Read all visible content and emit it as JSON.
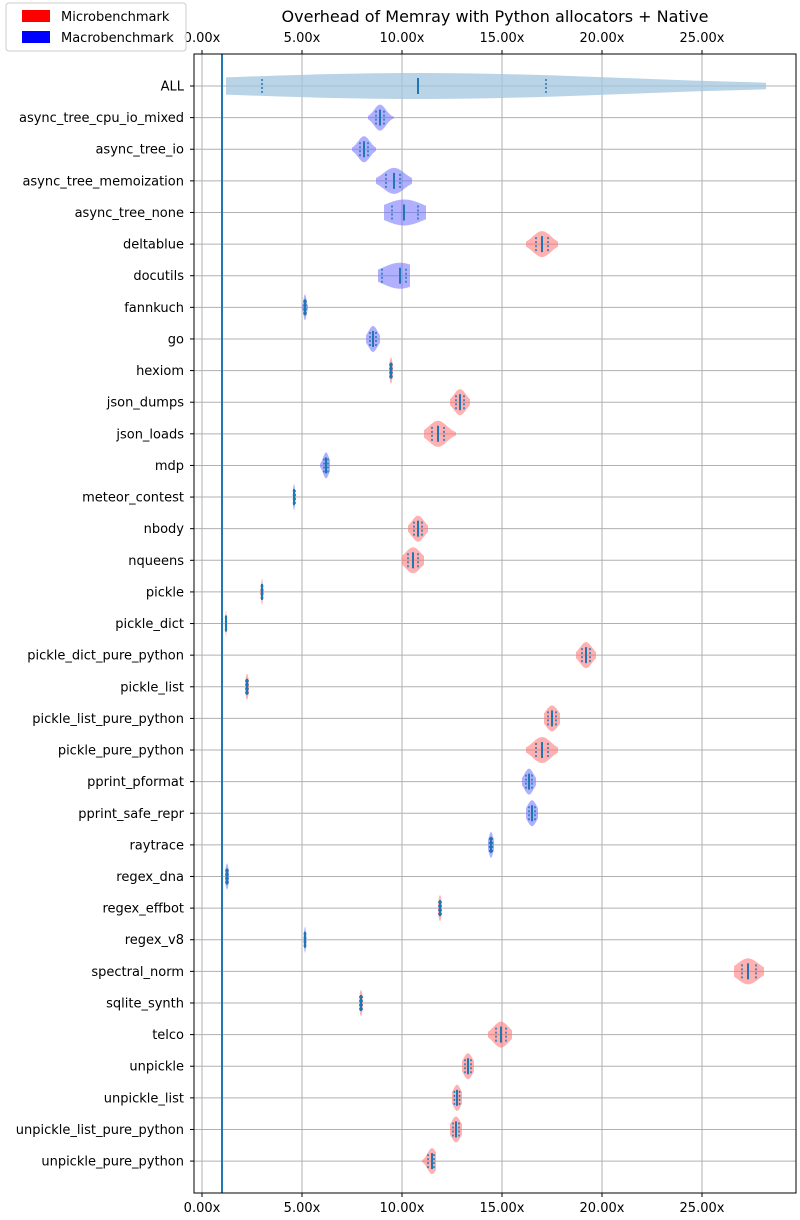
{
  "chart_data": {
    "type": "violin",
    "title": "Overhead of Memray with Python allocators + Native",
    "xlim": [
      -0.4,
      29.7
    ],
    "x_ticks": [
      0,
      5,
      10,
      15,
      20,
      25
    ],
    "x_tick_labels": [
      "0.00x",
      "5.00x",
      "10.00x",
      "15.00x",
      "20.00x",
      "25.00x"
    ],
    "reference_line_x": 1.0,
    "grid": true,
    "legend": {
      "placement": "top-left",
      "entries": [
        {
          "label": "Microbenchmark",
          "color": "#ff0000"
        },
        {
          "label": "Macrobenchmark",
          "color": "#0000ff"
        }
      ]
    },
    "colors": {
      "micro_fill": "#ff6f6f",
      "macro_fill": "#6f6fff",
      "all_fill": "#a3c6df",
      "marker": "#1f77b4"
    },
    "categories": [
      "ALL",
      "async_tree_cpu_io_mixed",
      "async_tree_io",
      "async_tree_memoization",
      "async_tree_none",
      "deltablue",
      "docutils",
      "fannkuch",
      "go",
      "hexiom",
      "json_dumps",
      "json_loads",
      "mdp",
      "meteor_contest",
      "nbody",
      "nqueens",
      "pickle",
      "pickle_dict",
      "pickle_dict_pure_python",
      "pickle_list",
      "pickle_list_pure_python",
      "pickle_pure_python",
      "pprint_pformat",
      "pprint_safe_repr",
      "raytrace",
      "regex_dna",
      "regex_effbot",
      "regex_v8",
      "spectral_norm",
      "sqlite_synth",
      "telco",
      "unpickle",
      "unpickle_list",
      "unpickle_list_pure_python",
      "unpickle_pure_python"
    ],
    "series": [
      {
        "kind": "all",
        "median": 10.8,
        "min": 1.2,
        "max": 28.2,
        "q1": 3.0,
        "q3": 17.2
      },
      {
        "kind": "macro",
        "median": 8.9,
        "min": 8.3,
        "max": 9.6,
        "q1": 8.7,
        "q3": 9.1
      },
      {
        "kind": "macro",
        "median": 8.1,
        "min": 7.5,
        "max": 8.7,
        "q1": 7.9,
        "q3": 8.3
      },
      {
        "kind": "macro",
        "median": 9.6,
        "min": 8.7,
        "max": 10.5,
        "q1": 9.2,
        "q3": 9.9
      },
      {
        "kind": "macro",
        "median": 10.1,
        "min": 9.1,
        "max": 11.2,
        "q1": 9.5,
        "q3": 10.8
      },
      {
        "kind": "micro",
        "median": 17.0,
        "min": 16.2,
        "max": 17.8,
        "q1": 16.7,
        "q3": 17.3
      },
      {
        "kind": "macro",
        "median": 9.9,
        "min": 8.8,
        "max": 10.4,
        "q1": 9.0,
        "q3": 10.2
      },
      {
        "kind": "macro",
        "median": 5.15,
        "min": 5.0,
        "max": 5.3,
        "q1": 5.1,
        "q3": 5.2
      },
      {
        "kind": "macro",
        "median": 8.55,
        "min": 8.2,
        "max": 8.9,
        "q1": 8.4,
        "q3": 8.7
      },
      {
        "kind": "micro",
        "median": 9.45,
        "min": 9.35,
        "max": 9.55,
        "q1": 9.4,
        "q3": 9.5
      },
      {
        "kind": "micro",
        "median": 12.9,
        "min": 12.4,
        "max": 13.4,
        "q1": 12.7,
        "q3": 13.1
      },
      {
        "kind": "micro",
        "median": 11.8,
        "min": 11.1,
        "max": 12.7,
        "q1": 11.5,
        "q3": 12.1
      },
      {
        "kind": "macro",
        "median": 6.2,
        "min": 5.9,
        "max": 6.4,
        "q1": 6.1,
        "q3": 6.3
      },
      {
        "kind": "macro",
        "median": 4.6,
        "min": 4.55,
        "max": 4.7,
        "q1": 4.58,
        "q3": 4.65
      },
      {
        "kind": "micro",
        "median": 10.8,
        "min": 10.3,
        "max": 11.3,
        "q1": 10.6,
        "q3": 11.0
      },
      {
        "kind": "micro",
        "median": 10.55,
        "min": 10.0,
        "max": 11.1,
        "q1": 10.3,
        "q3": 10.8
      },
      {
        "kind": "micro",
        "median": 3.0,
        "min": 2.9,
        "max": 3.1,
        "q1": 2.97,
        "q3": 3.03
      },
      {
        "kind": "micro",
        "median": 1.2,
        "min": 1.15,
        "max": 1.25,
        "q1": 1.18,
        "q3": 1.22
      },
      {
        "kind": "micro",
        "median": 19.2,
        "min": 18.7,
        "max": 19.7,
        "q1": 19.0,
        "q3": 19.4
      },
      {
        "kind": "micro",
        "median": 2.25,
        "min": 2.15,
        "max": 2.35,
        "q1": 2.2,
        "q3": 2.3
      },
      {
        "kind": "micro",
        "median": 17.5,
        "min": 17.1,
        "max": 17.9,
        "q1": 17.3,
        "q3": 17.7
      },
      {
        "kind": "micro",
        "median": 17.0,
        "min": 16.2,
        "max": 17.8,
        "q1": 16.7,
        "q3": 17.3
      },
      {
        "kind": "macro",
        "median": 16.35,
        "min": 16.0,
        "max": 16.7,
        "q1": 16.2,
        "q3": 16.5
      },
      {
        "kind": "macro",
        "median": 16.5,
        "min": 16.2,
        "max": 16.8,
        "q1": 16.35,
        "q3": 16.65
      },
      {
        "kind": "macro",
        "median": 14.45,
        "min": 14.3,
        "max": 14.6,
        "q1": 14.38,
        "q3": 14.52
      },
      {
        "kind": "macro",
        "median": 1.25,
        "min": 1.15,
        "max": 1.35,
        "q1": 1.2,
        "q3": 1.3
      },
      {
        "kind": "micro",
        "median": 11.9,
        "min": 11.8,
        "max": 12.0,
        "q1": 11.85,
        "q3": 11.95
      },
      {
        "kind": "macro",
        "median": 5.15,
        "min": 5.08,
        "max": 5.22,
        "q1": 5.12,
        "q3": 5.18
      },
      {
        "kind": "micro",
        "median": 27.3,
        "min": 26.6,
        "max": 28.1,
        "q1": 27.0,
        "q3": 27.7
      },
      {
        "kind": "micro",
        "median": 7.95,
        "min": 7.85,
        "max": 8.05,
        "q1": 7.9,
        "q3": 8.0
      },
      {
        "kind": "micro",
        "median": 14.95,
        "min": 14.3,
        "max": 15.5,
        "q1": 14.7,
        "q3": 15.2
      },
      {
        "kind": "micro",
        "median": 13.3,
        "min": 13.0,
        "max": 13.6,
        "q1": 13.15,
        "q3": 13.45
      },
      {
        "kind": "micro",
        "median": 12.75,
        "min": 12.5,
        "max": 13.0,
        "q1": 12.62,
        "q3": 12.88
      },
      {
        "kind": "micro",
        "median": 12.7,
        "min": 12.4,
        "max": 13.0,
        "q1": 12.55,
        "q3": 12.85
      },
      {
        "kind": "micro",
        "median": 11.5,
        "min": 11.0,
        "max": 11.7,
        "q1": 11.3,
        "q3": 11.6
      }
    ]
  }
}
